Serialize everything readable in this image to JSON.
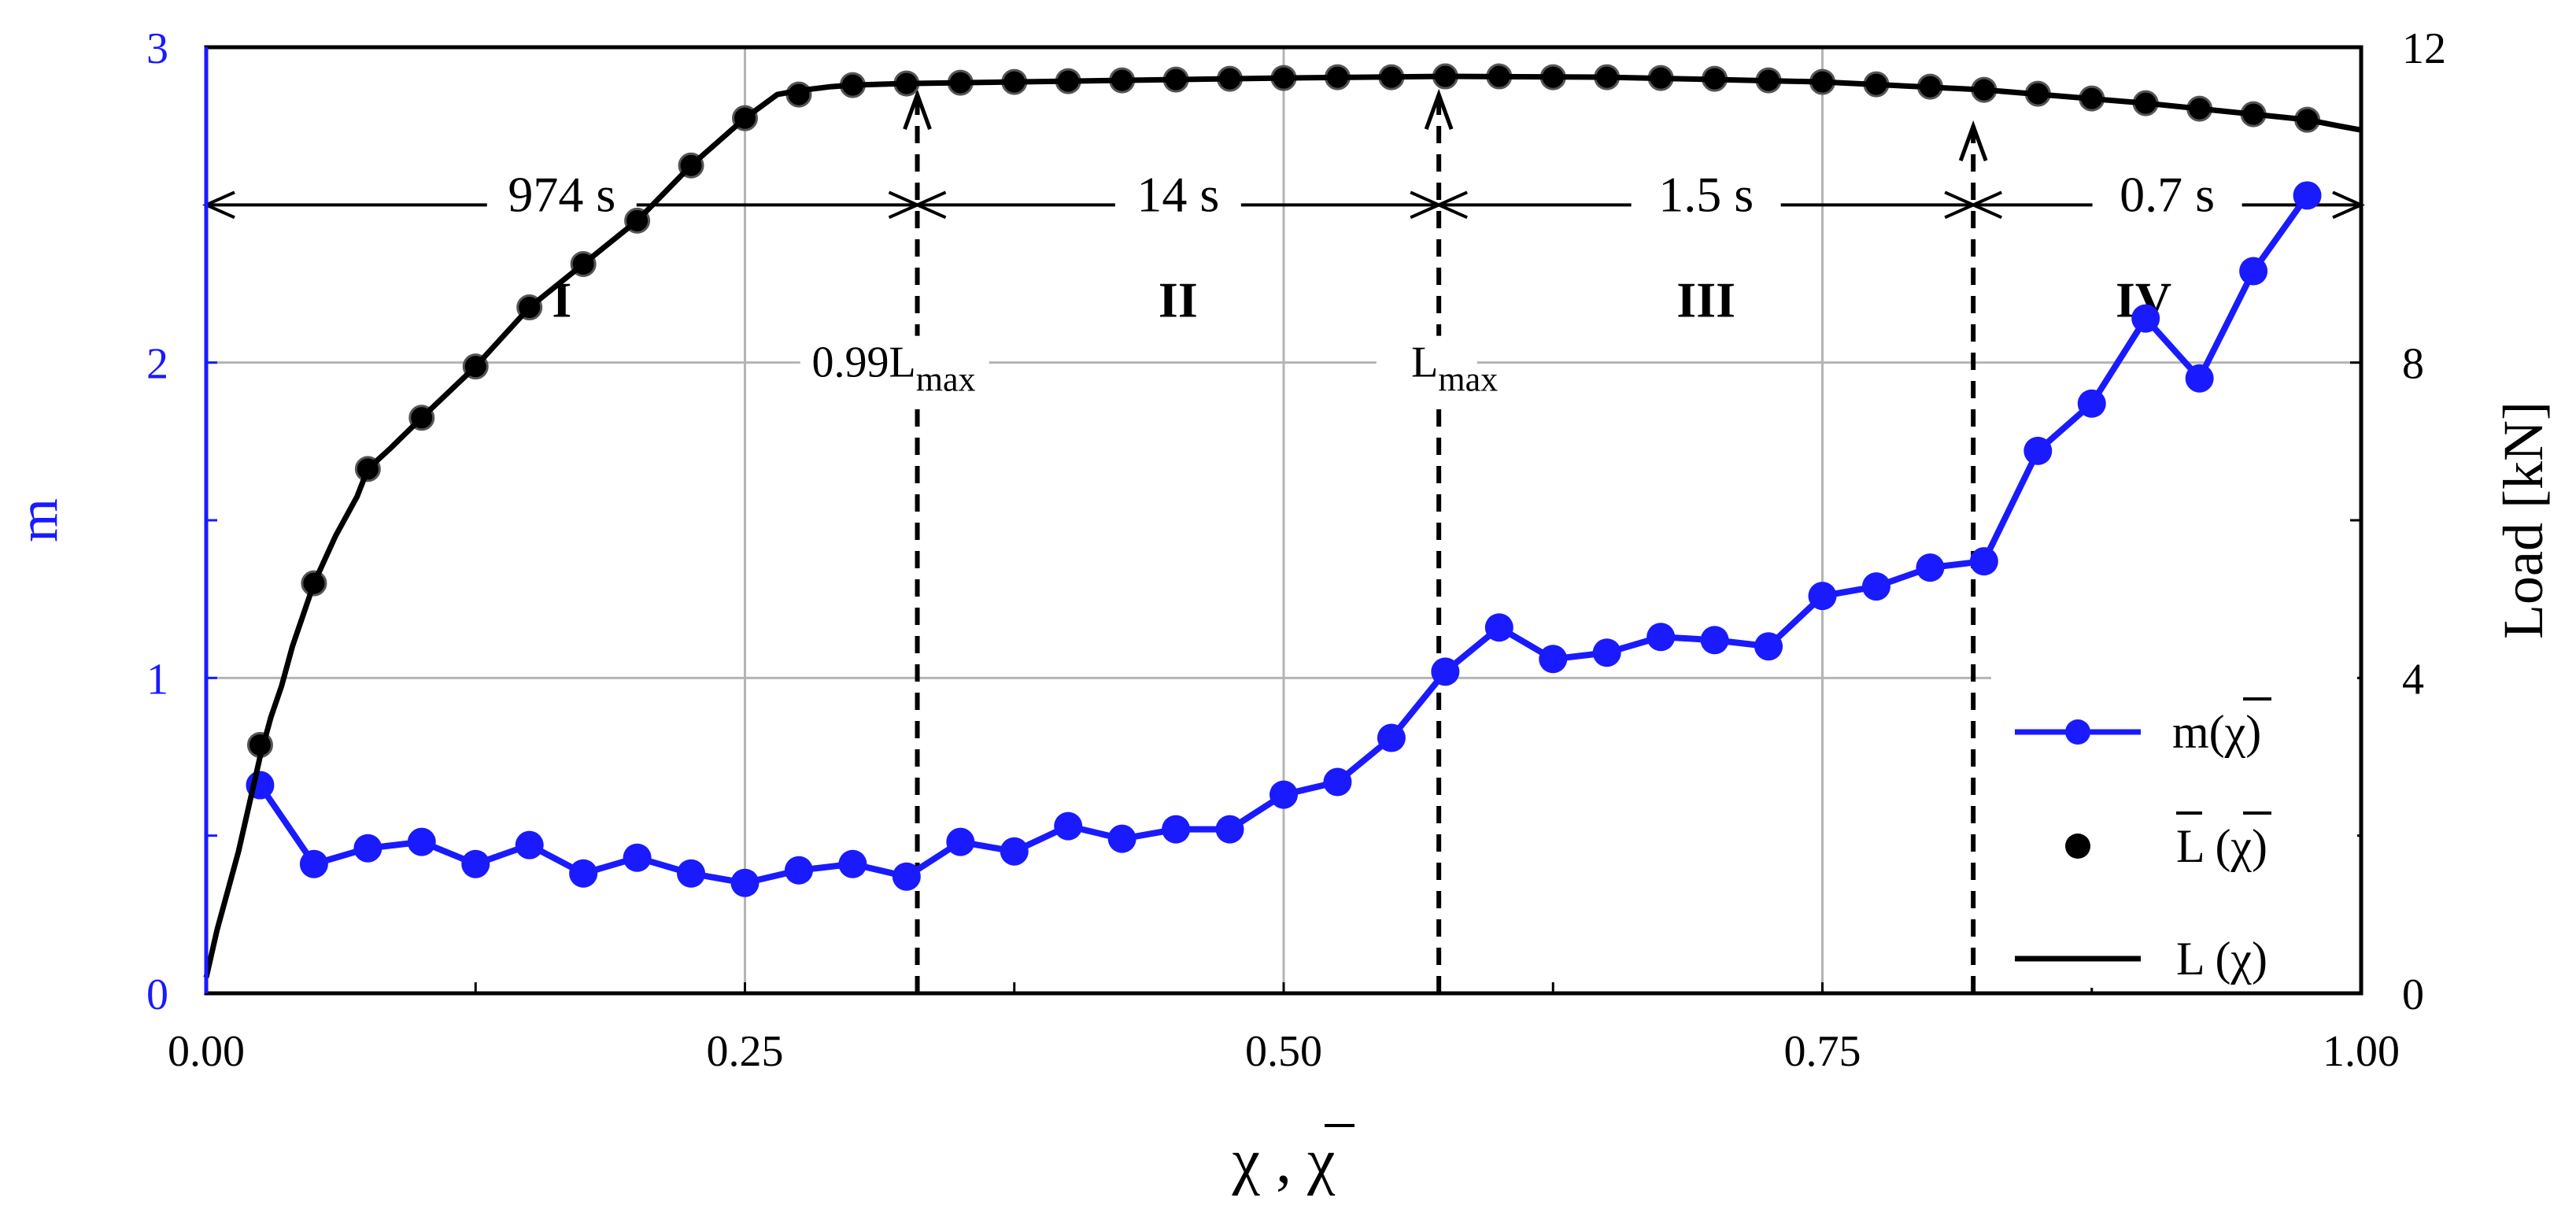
{
  "chart_data": {
    "type": "line",
    "xlabel_main": "χ , ",
    "xlabel_bar": "χ",
    "ylabel_left": "m",
    "ylabel_right": "Load [kN]",
    "xlim": [
      0,
      1
    ],
    "ylim_left": [
      0,
      3
    ],
    "ylim_right": [
      0,
      12
    ],
    "x_ticks": [
      "0.00",
      "0.25",
      "0.50",
      "0.75",
      "1.00"
    ],
    "y_left_ticks": [
      "0",
      "1",
      "2",
      "3"
    ],
    "y_right_ticks": [
      "0",
      "4",
      "8",
      "12"
    ],
    "grid": true,
    "legend_position": "bottom-right",
    "legend": {
      "m": "m(χ)",
      "Lbar_L": "L",
      "Lbar_chi": " (χ)",
      "L_L": "L",
      "L_chi": " (χ)"
    },
    "colors": {
      "m": "#1a1aff",
      "L": "#000000",
      "grid": "#b4b4b4"
    },
    "series": [
      {
        "id": "m",
        "axis": "left",
        "marker": "circle",
        "x": [
          0.025,
          0.05,
          0.075,
          0.1,
          0.125,
          0.15,
          0.175,
          0.2,
          0.225,
          0.25,
          0.275,
          0.3,
          0.325,
          0.35,
          0.375,
          0.4,
          0.425,
          0.45,
          0.475,
          0.5,
          0.525,
          0.55,
          0.575,
          0.6,
          0.625,
          0.65,
          0.675,
          0.7,
          0.725,
          0.75,
          0.775,
          0.8,
          0.825,
          0.85,
          0.875,
          0.9,
          0.925,
          0.95,
          0.975
        ],
        "y": [
          0.66,
          0.41,
          0.46,
          0.48,
          0.41,
          0.47,
          0.38,
          0.43,
          0.38,
          0.35,
          0.39,
          0.41,
          0.37,
          0.48,
          0.45,
          0.53,
          0.49,
          0.52,
          0.52,
          0.63,
          0.67,
          0.81,
          1.02,
          1.16,
          1.06,
          1.08,
          1.13,
          1.12,
          1.1,
          1.26,
          1.29,
          1.35,
          1.37,
          1.72,
          1.87,
          2.14,
          1.95,
          2.29,
          2.53
        ]
      },
      {
        "id": "Lbar",
        "axis": "right",
        "marker": "circle",
        "x": [
          0.025,
          0.05,
          0.075,
          0.1,
          0.125,
          0.15,
          0.175,
          0.2,
          0.225,
          0.25,
          0.275,
          0.3,
          0.325,
          0.35,
          0.375,
          0.4,
          0.425,
          0.45,
          0.475,
          0.5,
          0.525,
          0.55,
          0.575,
          0.6,
          0.625,
          0.65,
          0.675,
          0.7,
          0.725,
          0.75,
          0.775,
          0.8,
          0.825,
          0.85,
          0.875,
          0.9,
          0.925,
          0.95,
          0.975
        ],
        "y": [
          3.15,
          5.2,
          6.65,
          7.3,
          7.95,
          8.7,
          9.25,
          9.8,
          10.5,
          11.1,
          11.4,
          11.52,
          11.54,
          11.55,
          11.56,
          11.57,
          11.58,
          11.59,
          11.6,
          11.61,
          11.62,
          11.62,
          11.63,
          11.63,
          11.62,
          11.62,
          11.61,
          11.6,
          11.58,
          11.56,
          11.53,
          11.5,
          11.46,
          11.41,
          11.35,
          11.29,
          11.22,
          11.15,
          11.08
        ]
      },
      {
        "id": "L",
        "axis": "right",
        "marker": "none",
        "x": [
          0,
          0.005,
          0.01,
          0.015,
          0.02,
          0.025,
          0.03,
          0.035,
          0.04,
          0.045,
          0.05,
          0.06,
          0.07,
          0.075,
          0.085,
          0.1,
          0.125,
          0.15,
          0.175,
          0.2,
          0.225,
          0.25,
          0.265,
          0.275,
          0.29,
          0.3,
          0.325,
          0.4,
          0.5,
          0.575,
          0.65,
          0.75,
          0.825,
          0.9,
          0.95,
          0.975,
          0.99,
          1.0
        ],
        "y": [
          0.2,
          0.8,
          1.3,
          1.8,
          2.4,
          3.0,
          3.5,
          3.9,
          4.4,
          4.8,
          5.2,
          5.8,
          6.3,
          6.65,
          6.9,
          7.3,
          7.95,
          8.7,
          9.25,
          9.8,
          10.5,
          11.1,
          11.4,
          11.45,
          11.5,
          11.52,
          11.54,
          11.57,
          11.61,
          11.63,
          11.62,
          11.56,
          11.46,
          11.29,
          11.15,
          11.08,
          11.0,
          10.95
        ]
      }
    ],
    "markers": [
      {
        "x": 0.33,
        "label_main": "0.99L",
        "label_sub": "max"
      },
      {
        "x": 0.572,
        "label_main": "L",
        "label_sub": "max"
      },
      {
        "x": 0.82,
        "label_main": "",
        "label_sub": ""
      }
    ],
    "intervals": [
      {
        "from": 0.0,
        "to": 0.33,
        "duration": "974 s",
        "stage": "I"
      },
      {
        "from": 0.33,
        "to": 0.572,
        "duration": "14 s",
        "stage": "II"
      },
      {
        "from": 0.572,
        "to": 0.82,
        "duration": "1.5 s",
        "stage": "III"
      },
      {
        "from": 0.82,
        "to": 1.0,
        "duration": "0.7 s",
        "stage": "IV"
      }
    ]
  }
}
